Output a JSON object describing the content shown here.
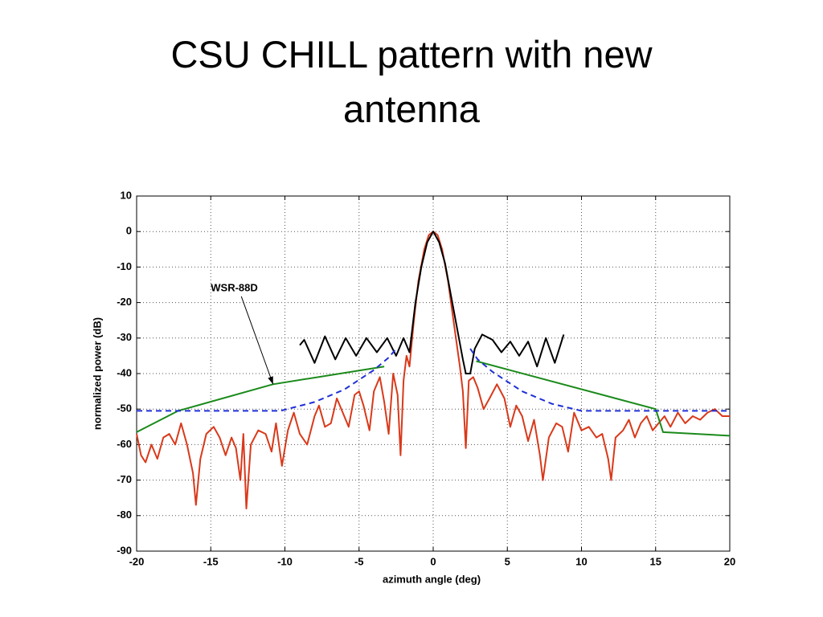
{
  "chart_data": {
    "type": "line",
    "title": "CSU CHILL pattern with new antenna",
    "xlabel": "azimuth angle (deg)",
    "ylabel": "normalized power (dB)",
    "xlim": [
      -20,
      20
    ],
    "ylim": [
      -90,
      10
    ],
    "xticks": [
      -20,
      -15,
      -10,
      -5,
      0,
      5,
      10,
      15,
      20
    ],
    "yticks": [
      -90,
      -80,
      -70,
      -60,
      -50,
      -40,
      -30,
      -20,
      -10,
      0,
      10
    ],
    "grid": true,
    "series": [
      {
        "color": "#d9391a",
        "dashed": false,
        "x": [
          -20,
          -19.7,
          -19.4,
          -19,
          -18.6,
          -18.2,
          -17.8,
          -17.4,
          -17,
          -16.6,
          -16.2,
          -16,
          -15.7,
          -15.3,
          -14.8,
          -14.4,
          -14,
          -13.6,
          -13.3,
          -13,
          -12.8,
          -12.6,
          -12.3,
          -11.8,
          -11.3,
          -10.9,
          -10.6,
          -10.2,
          -9.8,
          -9.4,
          -9,
          -8.5,
          -8,
          -7.7,
          -7.3,
          -6.9,
          -6.5,
          -6.1,
          -5.7,
          -5.3,
          -5,
          -4.7,
          -4.3,
          -4,
          -3.6,
          -3.3,
          -3,
          -2.7,
          -2.4,
          -2.2,
          -2,
          -1.8,
          -1.6,
          -1.3,
          -1,
          -0.6,
          -0.3,
          0,
          0.3,
          0.6,
          1,
          1.4,
          1.8,
          2,
          2.2,
          2.4,
          2.7,
          3,
          3.4,
          3.8,
          4.3,
          4.8,
          5.2,
          5.6,
          6,
          6.4,
          6.8,
          7.2,
          7.4,
          7.8,
          8.3,
          8.7,
          9.1,
          9.5,
          10,
          10.5,
          11,
          11.4,
          11.8,
          12,
          12.3,
          12.8,
          13.2,
          13.6,
          14,
          14.4,
          14.8,
          15.2,
          15.6,
          16,
          16.5,
          17,
          17.5,
          18,
          18.5,
          19,
          19.5,
          20
        ],
        "values": [
          -57,
          -63,
          -65,
          -60,
          -64,
          -58,
          -57,
          -60,
          -54,
          -60,
          -68,
          -77,
          -64,
          -57,
          -55,
          -58,
          -63,
          -58,
          -61,
          -70,
          -57,
          -78,
          -60,
          -56,
          -57,
          -62,
          -54,
          -66,
          -56,
          -51,
          -57,
          -60,
          -52,
          -49,
          -55,
          -54,
          -47,
          -51,
          -55,
          -46,
          -45,
          -49,
          -56,
          -45,
          -41,
          -48,
          -57,
          -40,
          -46,
          -63,
          -42,
          -35,
          -38,
          -25,
          -14,
          -5,
          -1,
          0,
          -1,
          -5,
          -14,
          -26,
          -38,
          -45,
          -61,
          -42,
          -41,
          -44,
          -50,
          -47,
          -43,
          -47,
          -55,
          -49,
          -52,
          -59,
          -53,
          -63,
          -70,
          -58,
          -54,
          -55,
          -62,
          -51,
          -56,
          -55,
          -58,
          -57,
          -64,
          -70,
          -58,
          -56,
          -53,
          -58,
          -54,
          -52,
          -56,
          -54,
          -52,
          -55,
          -51,
          -54,
          -52,
          -53,
          -51,
          -50,
          -52,
          -52
        ]
      },
      {
        "color": "#000000",
        "dashed": false,
        "x": [
          -9,
          -8.7,
          -8,
          -7.3,
          -6.6,
          -5.9,
          -5.2,
          -4.5,
          -3.8,
          -3.1,
          -2.5,
          -2,
          -1.6,
          -1.2,
          -0.8,
          -0.4,
          0,
          0.4,
          0.8,
          1.2,
          1.6,
          2,
          2.2,
          2.5,
          2.8,
          3.3,
          4,
          4.6,
          5.2,
          5.8,
          6.4,
          7,
          7.6,
          8.2,
          8.8
        ],
        "values": [
          -32,
          -30.5,
          -37,
          -29.5,
          -36,
          -30,
          -35,
          -30,
          -34,
          -30,
          -35,
          -30,
          -34,
          -20,
          -10,
          -3,
          0,
          -3,
          -9,
          -18,
          -27,
          -36,
          -40,
          -40,
          -33,
          -29,
          -30.5,
          -34,
          -31,
          -35,
          -31,
          -38,
          -30,
          -37,
          -29
        ]
      },
      {
        "color": "#1a8a1a",
        "dashed": false,
        "x": [
          -20,
          -17.2,
          -10.8,
          -3.3,
          0,
          2.9,
          15,
          15.5,
          20
        ],
        "values": [
          -56.5,
          -50.5,
          -43,
          -38,
          null,
          -36.5,
          -50,
          -56.5,
          -57.5
        ]
      },
      {
        "color": "#1f2fd6",
        "dashed": true,
        "x": [
          -20,
          -10.3,
          -8,
          -6,
          -4,
          -3,
          -2.5,
          0,
          2.5,
          3,
          4,
          6,
          8,
          10,
          20
        ],
        "values": [
          -50.5,
          -50.5,
          -48,
          -44.5,
          -39,
          -35.5,
          -33,
          null,
          -33,
          -36,
          -39.5,
          -45,
          -48.5,
          -50.5,
          -50.5
        ]
      }
    ],
    "annotations": [
      {
        "text": "WSR-88D",
        "xy": [
          -10.8,
          -43
        ],
        "xytext": [
          -15,
          -16
        ]
      }
    ]
  }
}
